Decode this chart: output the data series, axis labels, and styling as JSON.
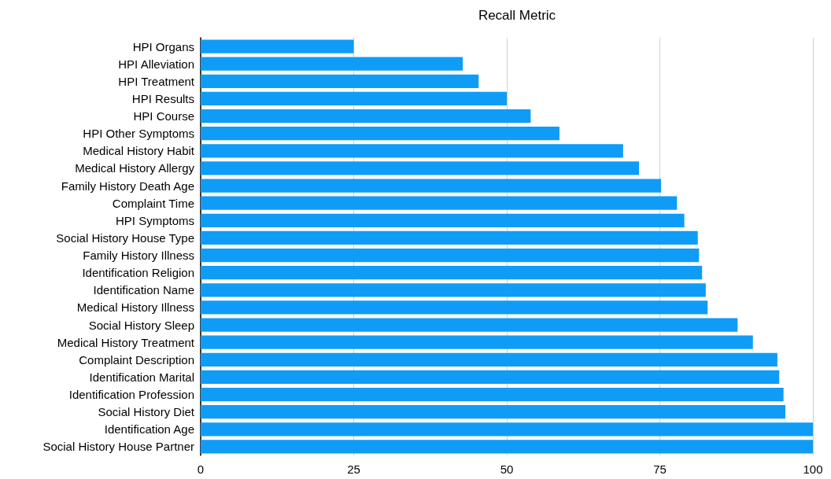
{
  "chart_data": {
    "type": "bar",
    "title": "Recall Metric",
    "orientation": "horizontal",
    "categories": [
      "HPI Organs",
      "HPI Alleviation",
      "HPI Treatment",
      "HPI Results",
      "HPI Course",
      "HPI Other Symptoms",
      "Medical History Habit",
      "Medical History Allergy",
      "Family History Death Age",
      "Complaint Time",
      "HPI Symptoms",
      "Social History House Type",
      "Family History Illness",
      "Identification Religion",
      "Identification Name",
      "Medical History Illness",
      "Social History Sleep",
      "Medical History Treatment",
      "Complaint Description",
      "Identification Marital",
      "Identification Profession",
      "Social History Diet",
      "Identification Age",
      "Social History House Partner"
    ],
    "values": [
      25,
      42.8,
      45.4,
      50,
      53.9,
      58.6,
      69,
      71.6,
      75.2,
      77.8,
      79,
      81.2,
      81.4,
      81.9,
      82.5,
      82.8,
      87.7,
      90.2,
      94.2,
      94.5,
      95.2,
      95.5,
      100,
      100
    ],
    "color": "#0f9cf7",
    "xlim": [
      0,
      100
    ],
    "xticks": [
      0,
      25,
      50,
      75,
      100
    ],
    "grid": "x"
  }
}
